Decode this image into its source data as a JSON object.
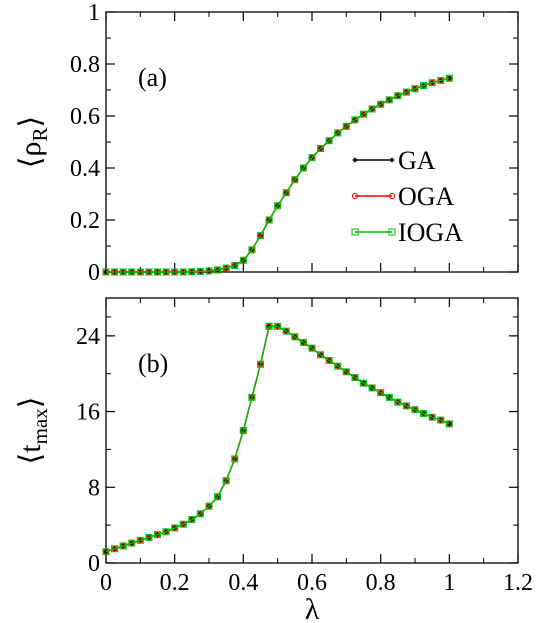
{
  "chart_data": [
    {
      "type": "line",
      "panel_label": "(a)",
      "ylabel": "⟨ρ_R⟩",
      "ylabel_main": "ρ",
      "ylabel_sub": "R",
      "xlabel": "",
      "xlim": [
        0,
        1.2
      ],
      "ylim": [
        0,
        1
      ],
      "xticks": [
        "0",
        "0.2",
        "0.4",
        "0.6",
        "0.8",
        "1",
        "1.2"
      ],
      "xtick_values": [
        0,
        0.2,
        0.4,
        0.6,
        0.8,
        1.0,
        1.2
      ],
      "xticks_labeled": false,
      "yticks": [
        "0",
        "0.2",
        "0.4",
        "0.6",
        "0.8",
        "1"
      ],
      "ytick_values": [
        0,
        0.2,
        0.4,
        0.6,
        0.8,
        1.0
      ],
      "grid": false,
      "legend_position": "right",
      "legend": [
        {
          "name": "GA",
          "color": "#000000",
          "marker": "diamond"
        },
        {
          "name": "OGA",
          "color": "#ff0000",
          "marker": "circle"
        },
        {
          "name": "IOGA",
          "color": "#00c000",
          "marker": "square"
        }
      ],
      "x": [
        0.0,
        0.025,
        0.05,
        0.075,
        0.1,
        0.125,
        0.15,
        0.175,
        0.2,
        0.225,
        0.25,
        0.275,
        0.3,
        0.325,
        0.35,
        0.375,
        0.4,
        0.425,
        0.45,
        0.475,
        0.5,
        0.525,
        0.55,
        0.575,
        0.6,
        0.625,
        0.65,
        0.675,
        0.7,
        0.725,
        0.75,
        0.775,
        0.8,
        0.825,
        0.85,
        0.875,
        0.9,
        0.925,
        0.95,
        0.975,
        1.0
      ],
      "series": [
        {
          "name": "GA",
          "color": "#000000",
          "marker": "diamond",
          "values": [
            0.0,
            0.0,
            0.0,
            0.0,
            0.0,
            0.0,
            0.0,
            0.0,
            0.0,
            0.0,
            0.001,
            0.002,
            0.004,
            0.008,
            0.015,
            0.025,
            0.045,
            0.085,
            0.14,
            0.2,
            0.255,
            0.305,
            0.355,
            0.4,
            0.44,
            0.475,
            0.505,
            0.535,
            0.56,
            0.585,
            0.607,
            0.627,
            0.645,
            0.662,
            0.678,
            0.692,
            0.705,
            0.717,
            0.728,
            0.737,
            0.745
          ]
        },
        {
          "name": "OGA",
          "color": "#ff0000",
          "marker": "circle",
          "values": [
            0.0,
            0.0,
            0.0,
            0.0,
            0.0,
            0.0,
            0.0,
            0.0,
            0.0,
            0.0,
            0.001,
            0.002,
            0.004,
            0.008,
            0.015,
            0.025,
            0.045,
            0.085,
            0.14,
            0.2,
            0.255,
            0.305,
            0.355,
            0.4,
            0.44,
            0.475,
            0.505,
            0.535,
            0.56,
            0.585,
            0.607,
            0.627,
            0.645,
            0.662,
            0.678,
            0.692,
            0.705,
            0.717,
            0.728,
            0.737,
            0.745
          ]
        },
        {
          "name": "IOGA",
          "color": "#00c000",
          "marker": "square",
          "values": [
            0.0,
            0.0,
            0.0,
            0.0,
            0.0,
            0.0,
            0.0,
            0.0,
            0.0,
            0.0,
            0.001,
            0.002,
            0.004,
            0.008,
            0.015,
            0.025,
            0.045,
            0.085,
            0.14,
            0.2,
            0.255,
            0.305,
            0.355,
            0.4,
            0.44,
            0.475,
            0.505,
            0.535,
            0.56,
            0.585,
            0.607,
            0.627,
            0.645,
            0.662,
            0.678,
            0.692,
            0.705,
            0.717,
            0.728,
            0.737,
            0.745
          ]
        }
      ]
    },
    {
      "type": "line",
      "panel_label": "(b)",
      "ylabel": "⟨t_max⟩",
      "ylabel_main": "t",
      "ylabel_sub": "max",
      "xlabel": "λ",
      "xlim": [
        0,
        1.2
      ],
      "ylim": [
        0,
        28
      ],
      "xticks": [
        "0",
        "0.2",
        "0.4",
        "0.6",
        "0.8",
        "1",
        "1.2"
      ],
      "xtick_values": [
        0,
        0.2,
        0.4,
        0.6,
        0.8,
        1.0,
        1.2
      ],
      "xticks_labeled": true,
      "yticks": [
        "0",
        "8",
        "16",
        "24"
      ],
      "ytick_values": [
        0,
        8,
        16,
        24
      ],
      "grid": false,
      "x": [
        0.0,
        0.025,
        0.05,
        0.075,
        0.1,
        0.125,
        0.15,
        0.175,
        0.2,
        0.225,
        0.25,
        0.275,
        0.3,
        0.325,
        0.35,
        0.375,
        0.4,
        0.425,
        0.45,
        0.475,
        0.5,
        0.525,
        0.55,
        0.575,
        0.6,
        0.625,
        0.65,
        0.675,
        0.7,
        0.725,
        0.75,
        0.775,
        0.8,
        0.825,
        0.85,
        0.875,
        0.9,
        0.925,
        0.95,
        0.975,
        1.0
      ],
      "series": [
        {
          "name": "GA",
          "color": "#000000",
          "marker": "diamond",
          "values": [
            1.2,
            1.5,
            1.8,
            2.1,
            2.4,
            2.7,
            3.0,
            3.3,
            3.7,
            4.1,
            4.6,
            5.2,
            6.0,
            7.0,
            8.7,
            11.0,
            14.0,
            17.5,
            21.0,
            25.0,
            25.0,
            24.5,
            23.9,
            23.3,
            22.7,
            22.0,
            21.4,
            20.8,
            20.2,
            19.6,
            19.0,
            18.5,
            18.0,
            17.5,
            17.0,
            16.6,
            16.2,
            15.8,
            15.4,
            15.1,
            14.7
          ]
        },
        {
          "name": "OGA",
          "color": "#ff0000",
          "marker": "circle",
          "values": [
            1.2,
            1.5,
            1.8,
            2.1,
            2.4,
            2.7,
            3.0,
            3.3,
            3.7,
            4.1,
            4.6,
            5.2,
            6.0,
            7.0,
            8.7,
            11.0,
            14.0,
            17.5,
            21.0,
            25.0,
            25.0,
            24.5,
            23.9,
            23.3,
            22.7,
            22.0,
            21.4,
            20.8,
            20.2,
            19.6,
            19.0,
            18.5,
            18.0,
            17.5,
            17.0,
            16.6,
            16.2,
            15.8,
            15.4,
            15.1,
            14.7
          ]
        },
        {
          "name": "IOGA",
          "color": "#00c000",
          "marker": "square",
          "values": [
            1.2,
            1.5,
            1.8,
            2.1,
            2.4,
            2.7,
            3.0,
            3.3,
            3.7,
            4.1,
            4.6,
            5.2,
            6.0,
            7.0,
            8.7,
            11.0,
            14.0,
            17.5,
            21.0,
            25.0,
            25.0,
            24.5,
            23.9,
            23.3,
            22.7,
            22.0,
            21.4,
            20.8,
            20.2,
            19.6,
            19.0,
            18.5,
            18.0,
            17.5,
            17.0,
            16.6,
            16.2,
            15.8,
            15.4,
            15.1,
            14.7
          ]
        }
      ]
    }
  ]
}
